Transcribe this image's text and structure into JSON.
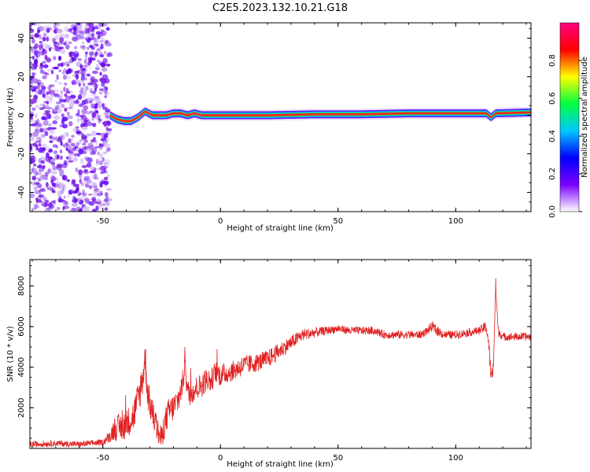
{
  "title": "C2E5.2023.132.10.21.G18",
  "chart_data": [
    {
      "type": "heatmap",
      "xlabel": "Height of straight line (km)",
      "ylabel": "Frequency (Hz)",
      "xlim": [
        -81,
        132
      ],
      "ylim": [
        -50,
        48
      ],
      "xticks": [
        -50,
        0,
        50,
        100
      ],
      "yticks": [
        -40,
        -20,
        0,
        20,
        40
      ],
      "grid": false,
      "colorbar": {
        "label": "Normalized spectral amplitude",
        "range": [
          0,
          1
        ],
        "ticks": [
          0.0,
          0.2,
          0.4,
          0.6,
          0.8
        ],
        "colormap": [
          "#ffffff",
          "#7a00ff",
          "#0000ff",
          "#00c8ff",
          "#00ff40",
          "#ffff00",
          "#ff0000",
          "#ff0080"
        ]
      },
      "noise_region_x": [
        -81,
        -47
      ],
      "ridge": {
        "x": [
          -47,
          -44,
          -41,
          -38,
          -35,
          -32,
          -29,
          -26,
          -23,
          -20,
          -17,
          -14,
          -11,
          -8,
          -5,
          0,
          10,
          20,
          40,
          60,
          80,
          100,
          113,
          115,
          117,
          132
        ],
        "y": [
          0,
          -2,
          -3,
          -3,
          -1,
          2,
          0,
          0,
          0,
          1,
          1,
          0,
          1,
          0,
          0,
          0,
          0,
          0,
          0.5,
          0.5,
          1,
          1,
          1,
          -1,
          1,
          1.5
        ]
      }
    },
    {
      "type": "line",
      "xlabel": "Height of straight line (km)",
      "ylabel": "SNR (10 * v/v)",
      "xlim": [
        -81,
        132
      ],
      "ylim": [
        0,
        9300
      ],
      "xticks": [
        -50,
        0,
        50,
        100
      ],
      "yticks": [
        2000,
        4000,
        6000,
        8000
      ],
      "grid": false,
      "series": [
        {
          "color": "#e02020",
          "x": [
            -81,
            -70,
            -60,
            -50,
            -47,
            -45,
            -43,
            -40,
            -37,
            -35,
            -33,
            -32,
            -31,
            -30,
            -28,
            -26,
            -25,
            -24,
            -22,
            -20,
            -18,
            -16,
            -15,
            -14,
            -12,
            -10,
            -8,
            -6,
            -4,
            -2,
            0,
            5,
            10,
            15,
            20,
            25,
            30,
            35,
            40,
            45,
            50,
            55,
            60,
            65,
            70,
            75,
            80,
            85,
            88,
            90,
            92,
            95,
            100,
            105,
            110,
            113,
            114,
            115,
            116,
            117,
            118,
            120,
            125,
            132
          ],
          "y": [
            200,
            250,
            200,
            300,
            600,
            1000,
            1000,
            1200,
            1600,
            2400,
            3500,
            4500,
            2800,
            2200,
            1400,
            600,
            500,
            1100,
            1800,
            2000,
            2400,
            3200,
            4500,
            2700,
            2800,
            3000,
            3100,
            3400,
            3300,
            3800,
            3600,
            3800,
            4100,
            4200,
            4400,
            4800,
            5200,
            5600,
            5700,
            5800,
            5900,
            5800,
            5800,
            5800,
            5600,
            5600,
            5600,
            5600,
            5800,
            6000,
            5800,
            5600,
            5600,
            5700,
            5800,
            6000,
            5200,
            3500,
            4000,
            8000,
            5800,
            5500,
            5500,
            5500
          ],
          "noise_amplitude": [
            150,
            150,
            150,
            150,
            300,
            600,
            700,
            700,
            800,
            900,
            900,
            900,
            800,
            800,
            700,
            600,
            600,
            700,
            700,
            700,
            700,
            700,
            700,
            700,
            600,
            600,
            600,
            600,
            600,
            550,
            550,
            500,
            500,
            450,
            450,
            400,
            350,
            300,
            250,
            200,
            200,
            200,
            200,
            200,
            200,
            200,
            200,
            200,
            200,
            250,
            250,
            200,
            200,
            200,
            200,
            300,
            400,
            400,
            400,
            400,
            250,
            200,
            200,
            200
          ]
        }
      ]
    }
  ]
}
